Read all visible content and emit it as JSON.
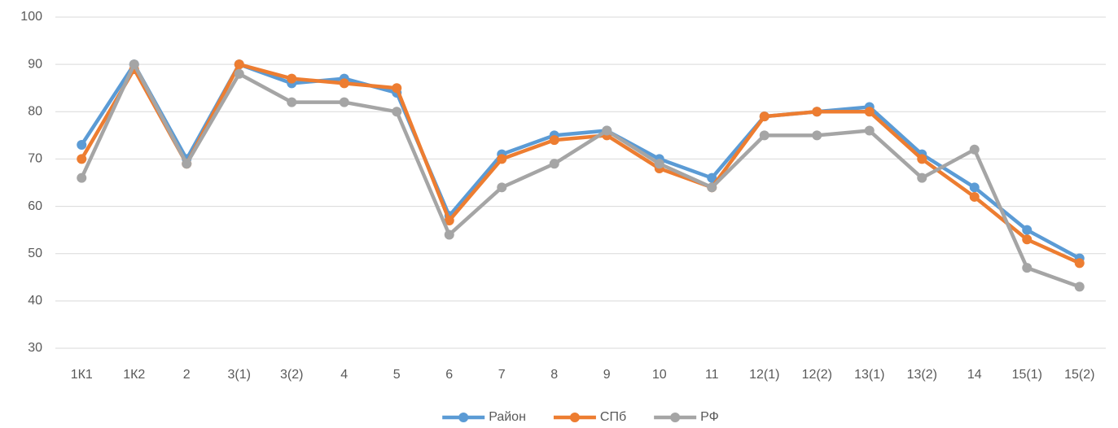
{
  "chart_data": {
    "type": "line",
    "categories": [
      "1К1",
      "1К2",
      "2",
      "3(1)",
      "3(2)",
      "4",
      "5",
      "6",
      "7",
      "8",
      "9",
      "10",
      "11",
      "12(1)",
      "12(2)",
      "13(1)",
      "13(2)",
      "14",
      "15(1)",
      "15(2)"
    ],
    "series": [
      {
        "name": "Район",
        "color": "#5b9bd5",
        "values": [
          73,
          90,
          70,
          90,
          86,
          87,
          84,
          58,
          71,
          75,
          76,
          70,
          66,
          79,
          80,
          81,
          71,
          64,
          55,
          49
        ]
      },
      {
        "name": "СПб",
        "color": "#ed7d31",
        "values": [
          70,
          89,
          69,
          90,
          87,
          86,
          85,
          57,
          70,
          74,
          75,
          68,
          64,
          79,
          80,
          80,
          70,
          62,
          53,
          48
        ]
      },
      {
        "name": "РФ",
        "color": "#a5a5a5",
        "values": [
          66,
          90,
          69,
          88,
          82,
          82,
          80,
          54,
          64,
          69,
          76,
          69,
          64,
          75,
          75,
          76,
          66,
          72,
          47,
          43
        ]
      }
    ],
    "ylim": [
      30,
      100
    ],
    "yticks": [
      30,
      40,
      50,
      60,
      70,
      80,
      90,
      100
    ],
    "grid": true,
    "legend": "bottom"
  }
}
